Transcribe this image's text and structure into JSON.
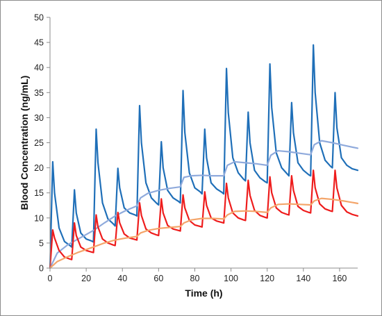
{
  "chart_data": {
    "type": "line",
    "title": "",
    "xlabel": "Time (h)",
    "ylabel": "Blood Concentration (ng/mL)",
    "xlim": [
      0,
      170
    ],
    "ylim": [
      0,
      50
    ],
    "x_ticks": [
      0,
      20,
      40,
      60,
      80,
      100,
      120,
      140,
      160
    ],
    "y_ticks": [
      0,
      5,
      10,
      15,
      20,
      25,
      30,
      35,
      40,
      45,
      50
    ],
    "grid": false,
    "legend": "none",
    "series": [
      {
        "color": "#1f6fb8",
        "x": [
          0,
          1.5,
          2.5,
          5,
          8,
          11,
          12,
          13.5,
          14.5,
          17,
          20,
          23,
          24,
          25.5,
          26.5,
          29,
          32,
          35,
          36,
          37.5,
          38.5,
          41,
          44,
          47,
          48,
          49.5,
          50.5,
          53,
          56,
          59,
          60,
          61.5,
          62.5,
          65,
          68,
          71,
          72,
          73.5,
          74.5,
          77,
          80,
          83,
          84,
          85.5,
          86.5,
          89,
          92,
          95,
          96,
          97.5,
          98.5,
          101,
          104,
          107,
          108,
          109.5,
          110.5,
          113,
          116,
          119,
          120,
          121.5,
          122.5,
          125,
          128,
          131,
          132,
          133.5,
          134.5,
          137,
          140,
          143,
          144,
          145.5,
          146.5,
          149,
          152,
          155,
          156,
          157.5,
          158.5,
          161,
          164,
          167,
          170
        ],
        "y": [
          0,
          21.2,
          15,
          8,
          5.3,
          4.5,
          4.2,
          15.6,
          11,
          7,
          5.8,
          5.4,
          5.2,
          27.7,
          21,
          13,
          9.8,
          8.8,
          8.4,
          19.9,
          16,
          12,
          11,
          10.6,
          10.4,
          32.4,
          25,
          17,
          14,
          12.9,
          12.6,
          25.2,
          20,
          15.5,
          14,
          13.3,
          13,
          35.4,
          27,
          19,
          16,
          15.2,
          14.8,
          27.7,
          22,
          17,
          15.8,
          15.1,
          14.8,
          39.8,
          31,
          22,
          19,
          17.7,
          17.4,
          31.1,
          25,
          19.5,
          18,
          17.2,
          17,
          40.7,
          32,
          23,
          20,
          18.8,
          18.4,
          33,
          27,
          21,
          19.5,
          18.6,
          18.4,
          44.5,
          35,
          25,
          21.5,
          20.3,
          20,
          35,
          28,
          22,
          20.5,
          19.8,
          19.5
        ]
      },
      {
        "color": "#8faadc",
        "x": [
          0,
          4,
          10,
          16,
          24,
          30,
          36,
          42,
          48,
          50,
          54,
          60,
          66,
          72,
          74,
          78,
          84,
          90,
          96,
          98,
          102,
          108,
          114,
          120,
          122,
          126,
          132,
          138,
          144,
          146,
          150,
          156,
          162,
          170
        ],
        "y": [
          0,
          3,
          4.7,
          5.9,
          7.5,
          9,
          10.4,
          11.5,
          12.4,
          14,
          14.9,
          15.5,
          15.9,
          16.2,
          18.1,
          18.4,
          18.5,
          18.4,
          18.4,
          20.5,
          21.2,
          21,
          20.8,
          20.5,
          22.5,
          23.4,
          23.2,
          22.9,
          22.6,
          24.6,
          25.4,
          25,
          24.5,
          23.9
        ]
      },
      {
        "color": "#ee1c1c",
        "x": [
          0,
          1.5,
          2.5,
          5,
          8,
          11,
          12,
          13.5,
          14.5,
          17,
          20,
          23,
          24,
          25.5,
          26.5,
          29,
          32,
          35,
          36,
          37.5,
          38.5,
          41,
          44,
          47,
          48,
          49.5,
          50.5,
          53,
          56,
          59,
          60,
          61.5,
          62.5,
          65,
          68,
          71,
          72,
          73.5,
          74.5,
          77,
          80,
          83,
          84,
          85.5,
          86.5,
          89,
          92,
          95,
          96,
          97.5,
          98.5,
          101,
          104,
          107,
          108,
          109.5,
          110.5,
          113,
          116,
          119,
          120,
          121.5,
          122.5,
          125,
          128,
          131,
          132,
          133.5,
          134.5,
          137,
          140,
          143,
          144,
          145.5,
          146.5,
          149,
          152,
          155,
          156,
          157.5,
          158.5,
          161,
          164,
          167,
          170
        ],
        "y": [
          0,
          7.6,
          6,
          3.5,
          2.2,
          1.8,
          1.7,
          9,
          6.5,
          4.2,
          3.5,
          3.2,
          3.1,
          10.6,
          8.2,
          5.8,
          5,
          4.6,
          4.5,
          11.1,
          9,
          6.8,
          6,
          5.7,
          5.6,
          13,
          10.5,
          7.8,
          7,
          6.6,
          6.5,
          13.8,
          11,
          8.5,
          7.8,
          7.5,
          7.4,
          14.6,
          12,
          9.5,
          8.6,
          8.3,
          8.2,
          15.2,
          12.5,
          10,
          9.4,
          9.1,
          9,
          16.9,
          14,
          11,
          10,
          9.6,
          9.5,
          17.5,
          14.5,
          11.5,
          10.5,
          10.1,
          10,
          18.2,
          15,
          12,
          11.1,
          10.7,
          10.6,
          18.4,
          15.5,
          12.3,
          11.5,
          11.1,
          11,
          19.5,
          16,
          12.8,
          11.8,
          11.4,
          11.3,
          19.5,
          16,
          12.5,
          11.2,
          10.7,
          10.4
        ]
      },
      {
        "color": "#f4a56a",
        "x": [
          0,
          4,
          10,
          16,
          24,
          30,
          36,
          42,
          48,
          50,
          54,
          60,
          66,
          72,
          74,
          78,
          84,
          90,
          96,
          98,
          102,
          108,
          114,
          120,
          122,
          126,
          132,
          138,
          144,
          146,
          150,
          156,
          162,
          170
        ],
        "y": [
          0,
          1.3,
          2.3,
          3.2,
          4.2,
          5,
          5.6,
          6,
          6.3,
          7,
          7.5,
          7.9,
          8.1,
          8.3,
          9,
          9.6,
          9.9,
          9.9,
          9.8,
          10.6,
          11.3,
          11.4,
          11.3,
          11.1,
          12,
          12.7,
          12.8,
          12.7,
          12.6,
          13.4,
          13.9,
          13.7,
          13.4,
          12.9
        ]
      }
    ]
  }
}
